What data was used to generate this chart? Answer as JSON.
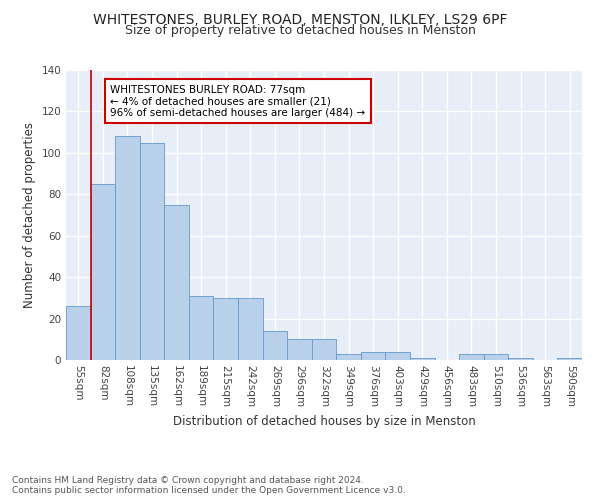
{
  "title": "WHITESTONES, BURLEY ROAD, MENSTON, ILKLEY, LS29 6PF",
  "subtitle": "Size of property relative to detached houses in Menston",
  "xlabel": "Distribution of detached houses by size in Menston",
  "ylabel": "Number of detached properties",
  "categories": [
    "55sqm",
    "82sqm",
    "108sqm",
    "135sqm",
    "162sqm",
    "189sqm",
    "215sqm",
    "242sqm",
    "269sqm",
    "296sqm",
    "322sqm",
    "349sqm",
    "376sqm",
    "403sqm",
    "429sqm",
    "456sqm",
    "483sqm",
    "510sqm",
    "536sqm",
    "563sqm",
    "590sqm"
  ],
  "values": [
    26,
    85,
    108,
    105,
    75,
    31,
    30,
    30,
    14,
    10,
    10,
    3,
    4,
    4,
    1,
    0,
    3,
    3,
    1,
    0,
    1
  ],
  "bar_color": "#b8d0ea",
  "bar_edge_color": "#6699cc",
  "reference_line_x": 1,
  "annotation_text": "WHITESTONES BURLEY ROAD: 77sqm\n← 4% of detached houses are smaller (21)\n96% of semi-detached houses are larger (484) →",
  "annotation_box_color": "#ffffff",
  "annotation_box_edge_color": "#cc0000",
  "ref_line_color": "#cc0000",
  "ylim": [
    0,
    140
  ],
  "yticks": [
    0,
    20,
    40,
    60,
    80,
    100,
    120,
    140
  ],
  "background_color": "#e8eef8",
  "grid_color": "#ffffff",
  "footer": "Contains HM Land Registry data © Crown copyright and database right 2024.\nContains public sector information licensed under the Open Government Licence v3.0.",
  "title_fontsize": 10,
  "subtitle_fontsize": 9,
  "xlabel_fontsize": 8.5,
  "ylabel_fontsize": 8.5,
  "tick_fontsize": 7.5,
  "annotation_fontsize": 7.5,
  "footer_fontsize": 6.5
}
